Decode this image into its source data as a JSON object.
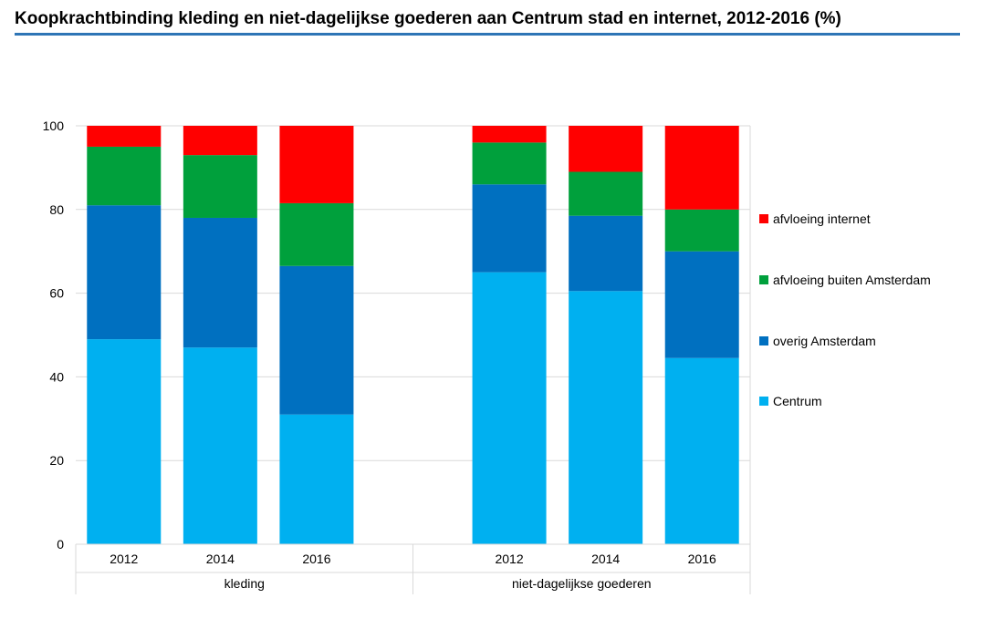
{
  "title": "Koopkrachtbinding kleding en niet-dagelijkse goederen aan Centrum stad en internet, 2012-2016 (%)",
  "chart_data": {
    "type": "bar",
    "stacked": true,
    "title": "Koopkrachtbinding kleding en niet-dagelijkse goederen aan Centrum stad en internet, 2012-2016 (%)",
    "groups": [
      {
        "name": "kleding",
        "categories": [
          "2012",
          "2014",
          "2016"
        ]
      },
      {
        "name": "niet-dagelijkse goederen",
        "categories": [
          "2012",
          "2014",
          "2016"
        ]
      }
    ],
    "ylim": [
      0,
      100
    ],
    "yticks": [
      "0",
      "20",
      "40",
      "60",
      "80",
      "100"
    ],
    "grid": true,
    "legend_position": "right",
    "series": [
      {
        "name": "Centrum",
        "color": "#00b0f0",
        "values": [
          49,
          47,
          31,
          65,
          60.5,
          44.5
        ]
      },
      {
        "name": "overig Amsterdam",
        "color": "#0070c0",
        "values": [
          32,
          31,
          35.5,
          21,
          18,
          25.5
        ]
      },
      {
        "name": "afvloeing buiten Amsterdam",
        "color": "#00a03c",
        "values": [
          14,
          15,
          15,
          10,
          10.5,
          10
        ]
      },
      {
        "name": "afvloeing internet",
        "color": "#ff0000",
        "values": [
          5,
          7,
          18.5,
          4,
          11,
          20
        ]
      }
    ]
  }
}
